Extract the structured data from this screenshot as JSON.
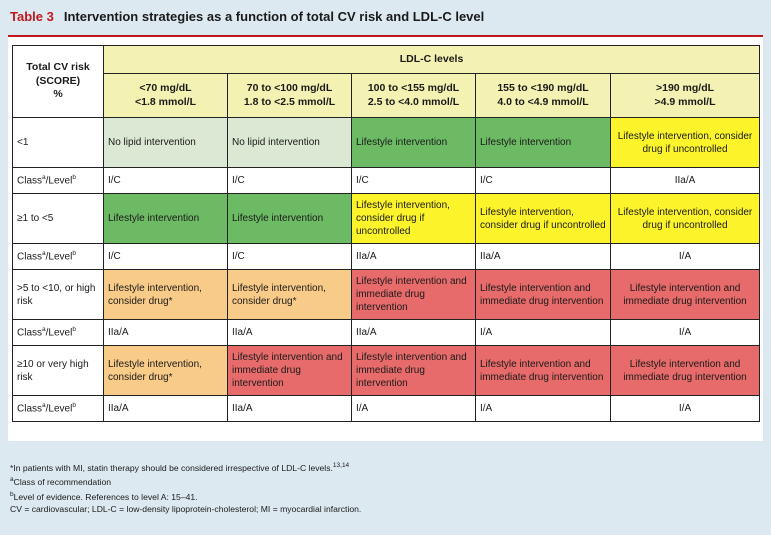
{
  "title": {
    "number": "Table 3",
    "text": "Intervention strategies as a function of total CV risk and LDL-C level"
  },
  "header": {
    "risk_col": [
      "Total CV risk",
      "(SCORE)",
      "%"
    ],
    "ldl_levels": "LDL-C levels",
    "columns": [
      {
        "line1": "<70 mg/dL",
        "line2": "<1.8 mmol/L"
      },
      {
        "line1": "70 to <100 mg/dL",
        "line2": "1.8 to <2.5 mmol/L"
      },
      {
        "line1": "100 to <155 mg/dL",
        "line2": "2.5 to <4.0 mmol/L"
      },
      {
        "line1": "155 to <190 mg/dL",
        "line2": "4.0 to <4.9 mmol/L"
      },
      {
        "line1": ">190 mg/dL",
        "line2": ">4.9 mmol/L"
      }
    ]
  },
  "class_level_label": "Class",
  "class_level_sup_a": "a",
  "class_level_mid": "/Level",
  "class_level_sup_b": "b",
  "rows": [
    {
      "risk": "<1",
      "cells": [
        "No lipid intervention",
        "No lipid intervention",
        "Lifestyle intervention",
        "Lifestyle intervention",
        "Lifestyle intervention, consider drug if uncontrolled"
      ],
      "classes": [
        "I/C",
        "I/C",
        "I/C",
        "I/C",
        "IIa/A"
      ]
    },
    {
      "risk": "≥1 to <5",
      "cells": [
        "Lifestyle intervention",
        "Lifestyle intervention",
        "Lifestyle intervention, consider drug if uncontrolled",
        "Lifestyle intervention, consider drug if uncontrolled",
        "Lifestyle intervention, consider drug if uncontrolled"
      ],
      "classes": [
        "I/C",
        "I/C",
        "IIa/A",
        "IIa/A",
        "I/A"
      ]
    },
    {
      "risk": ">5 to <10, or high risk",
      "cells": [
        "Lifestyle intervention, consider drug*",
        "Lifestyle intervention, consider drug*",
        "Lifestyle intervention and immediate drug intervention",
        "Lifestyle intervention and immediate drug intervention",
        "Lifestyle intervention and immediate drug intervention"
      ],
      "classes": [
        "IIa/A",
        "IIa/A",
        "IIa/A",
        "I/A",
        "I/A"
      ]
    },
    {
      "risk": "≥10 or very high risk",
      "cells": [
        "Lifestyle intervention, consider drug*",
        "Lifestyle intervention and immediate drug intervention",
        "Lifestyle intervention and immediate drug intervention",
        "Lifestyle intervention and immediate drug intervention",
        "Lifestyle intervention and immediate drug intervention"
      ],
      "classes": [
        "IIa/A",
        "IIa/A",
        "I/A",
        "I/A",
        "I/A"
      ]
    }
  ],
  "colors": {
    "header": "#f4f2b2",
    "no_intervention": "#dbe8d3",
    "lifestyle": "#6dba65",
    "consider_if_uncontrolled": "#fcf32b",
    "consider_drug": "#f9cb88",
    "immediate_drug": "#e66b6a",
    "title_red": "#c0171d"
  },
  "footnotes": {
    "star": "*In patients with MI, statin therapy should be considered irrespective of LDL-C levels.",
    "star_refs": "13,14",
    "a_sup": "a",
    "a_text": "Class of recommendation",
    "b_sup": "b",
    "b_text": "Level of evidence. References to level A: 15–41.",
    "abbrev": "CV = cardiovascular; LDL-C = low-density lipoprotein-cholesterol; MI = myocardial infarction."
  }
}
